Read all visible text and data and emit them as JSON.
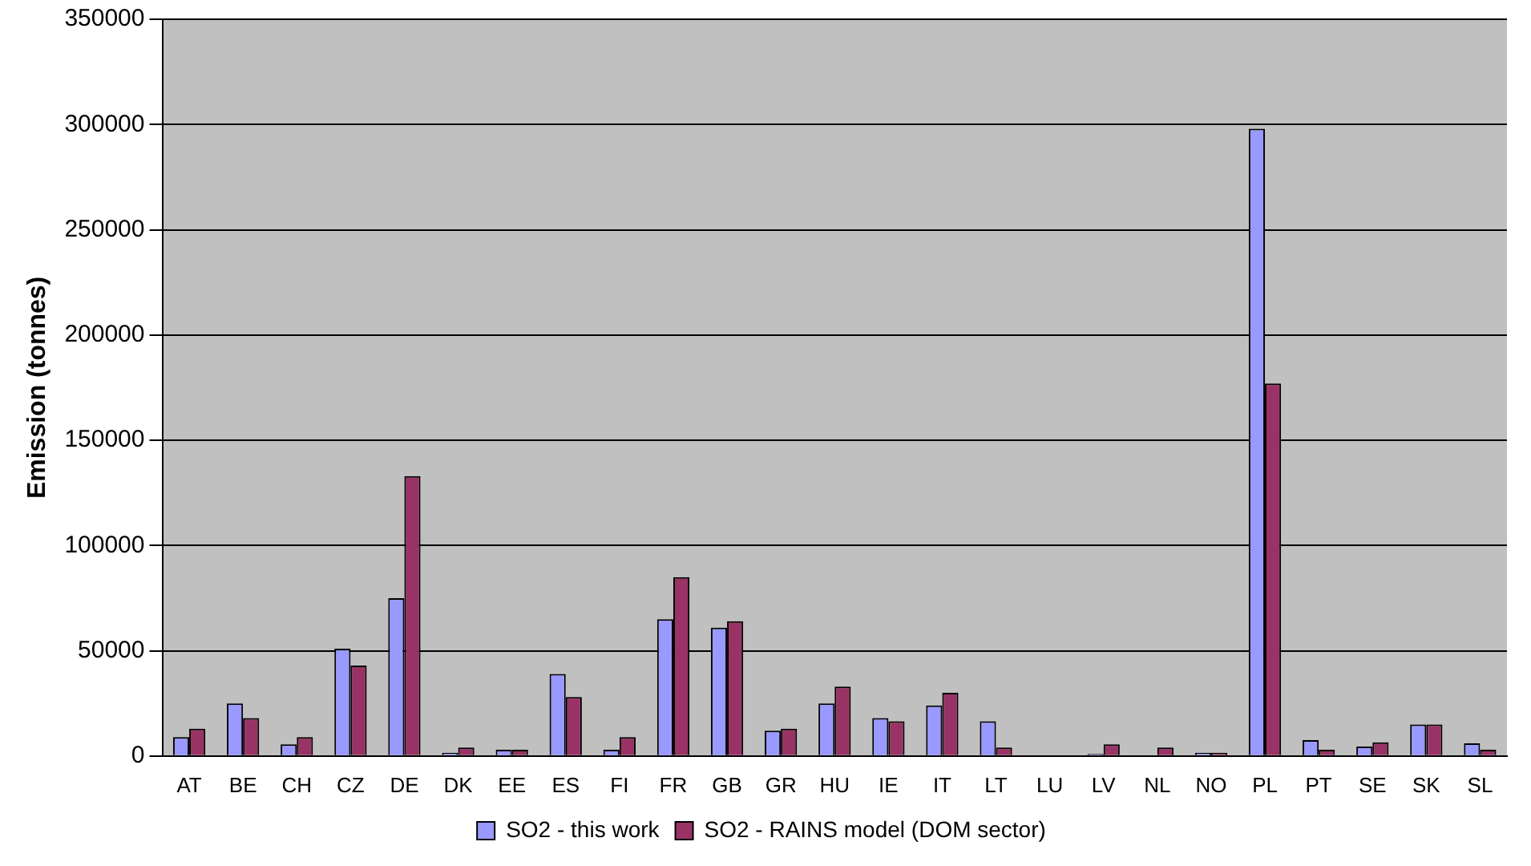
{
  "chart_data": {
    "type": "bar",
    "ylabel": "Emission (tonnes)",
    "categories": [
      "AT",
      "BE",
      "CH",
      "CZ",
      "DE",
      "DK",
      "EE",
      "ES",
      "FI",
      "FR",
      "GB",
      "GR",
      "HU",
      "IE",
      "IT",
      "LT",
      "LU",
      "LV",
      "NL",
      "NO",
      "PL",
      "PT",
      "SE",
      "SK",
      "SL"
    ],
    "series": [
      {
        "name": "SO2 - this work",
        "color": "#9999ff",
        "values": [
          9000,
          25000,
          5500,
          51000,
          75000,
          1500,
          3000,
          39000,
          3000,
          65000,
          61000,
          12000,
          25000,
          18000,
          24000,
          16500,
          0,
          1000,
          0,
          1500,
          298000,
          7500,
          4500,
          15000,
          6000
        ]
      },
      {
        "name": "SO2 - RAINS model (DOM sector)",
        "color": "#993366",
        "values": [
          13000,
          18000,
          9000,
          43000,
          133000,
          4000,
          3000,
          28000,
          9000,
          85000,
          64000,
          13000,
          33000,
          16500,
          30000,
          4000,
          0,
          5500,
          4000,
          1500,
          177000,
          3000,
          6500,
          15000,
          3000
        ]
      }
    ],
    "ylim": [
      0,
      350000
    ],
    "yticks": [
      0,
      50000,
      100000,
      150000,
      200000,
      250000,
      300000,
      350000
    ],
    "grid": "y",
    "legend": "bottom"
  }
}
